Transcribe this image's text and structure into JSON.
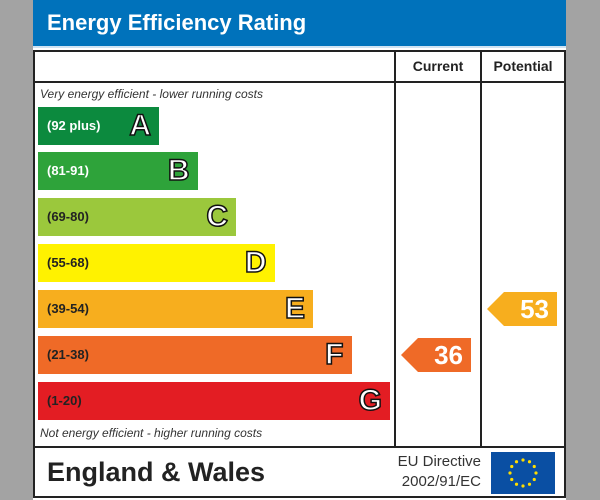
{
  "header": {
    "title": "Energy Efficiency Rating"
  },
  "columns": {
    "current": "Current",
    "potential": "Potential"
  },
  "notes": {
    "top": "Very energy efficient - lower running costs",
    "bottom": "Not energy efficient - higher running costs"
  },
  "footer": {
    "region": "England & Wales",
    "directive_line1": "EU Directive",
    "directive_line2": "2002/91/EC",
    "flag_icon": "eu-flag-icon"
  },
  "chart_data": {
    "type": "bar",
    "title": "Energy Efficiency Rating",
    "bands": [
      {
        "letter": "A",
        "range": "(92 plus)",
        "color": "#0c8a3e",
        "text_color": "#ffffff"
      },
      {
        "letter": "B",
        "range": "(81-91)",
        "color": "#2ea33a",
        "text_color": "#ffffff"
      },
      {
        "letter": "C",
        "range": "(69-80)",
        "color": "#9bc83c",
        "text_color": "#222222"
      },
      {
        "letter": "D",
        "range": "(55-68)",
        "color": "#fff200",
        "text_color": "#222222"
      },
      {
        "letter": "E",
        "range": "(39-54)",
        "color": "#f7ae1e",
        "text_color": "#222222"
      },
      {
        "letter": "F",
        "range": "(21-38)",
        "color": "#ef6a27",
        "text_color": "#222222"
      },
      {
        "letter": "G",
        "range": "(1-20)",
        "color": "#e31d23",
        "text_color": "#222222"
      }
    ],
    "current": {
      "value": "36",
      "band": "F"
    },
    "potential": {
      "value": "53",
      "band": "E"
    }
  }
}
